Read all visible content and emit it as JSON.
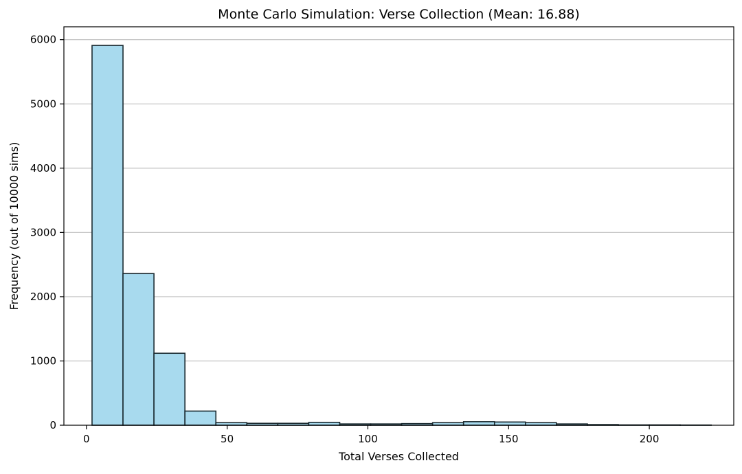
{
  "chart_data": {
    "type": "bar",
    "title": "Monte Carlo Simulation: Verse Collection (Mean: 16.88)",
    "xlabel": "Total Verses Collected",
    "ylabel": "Frequency (out of 10000 sims)",
    "xlim": [
      -8,
      230
    ],
    "ylim": [
      0,
      6200
    ],
    "xticks": [
      0,
      50,
      100,
      150,
      200
    ],
    "yticks": [
      0,
      1000,
      2000,
      3000,
      4000,
      5000,
      6000
    ],
    "grid": "y",
    "legend": "none",
    "colors": {
      "bar_fill": "#a8daee",
      "bar_edge": "#1a2a30",
      "grid": "#c8c8c8",
      "axis": "#000000"
    },
    "bins": [
      {
        "x0": 2,
        "x1": 13,
        "count": 5910
      },
      {
        "x0": 13,
        "x1": 24,
        "count": 2360
      },
      {
        "x0": 24,
        "x1": 35,
        "count": 1120
      },
      {
        "x0": 35,
        "x1": 46,
        "count": 220
      },
      {
        "x0": 46,
        "x1": 57,
        "count": 40
      },
      {
        "x0": 57,
        "x1": 68,
        "count": 30
      },
      {
        "x0": 68,
        "x1": 79,
        "count": 30
      },
      {
        "x0": 79,
        "x1": 90,
        "count": 45
      },
      {
        "x0": 90,
        "x1": 101,
        "count": 20
      },
      {
        "x0": 101,
        "x1": 112,
        "count": 20
      },
      {
        "x0": 112,
        "x1": 123,
        "count": 25
      },
      {
        "x0": 123,
        "x1": 134,
        "count": 40
      },
      {
        "x0": 134,
        "x1": 145,
        "count": 55
      },
      {
        "x0": 145,
        "x1": 156,
        "count": 50
      },
      {
        "x0": 156,
        "x1": 167,
        "count": 40
      },
      {
        "x0": 167,
        "x1": 178,
        "count": 20
      },
      {
        "x0": 178,
        "x1": 189,
        "count": 10
      },
      {
        "x0": 189,
        "x1": 200,
        "count": 5
      },
      {
        "x0": 200,
        "x1": 211,
        "count": 5
      },
      {
        "x0": 211,
        "x1": 222,
        "count": 3
      }
    ]
  }
}
